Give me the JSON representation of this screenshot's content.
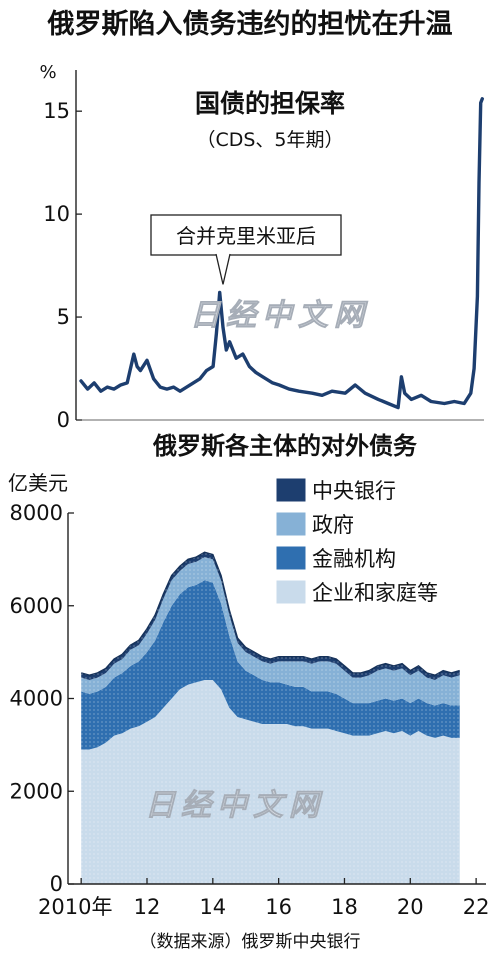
{
  "headline": "俄罗斯陷入债务违约的担忧在升温",
  "source_note": "（数据来源）俄罗斯中央银行",
  "watermark_text": "日经中文网",
  "colors": {
    "line": "#1d3e6f",
    "central_bank": "#1d3e6f",
    "government": "#86b1d6",
    "financial": "#2f6fb0",
    "corporate": "#c9dbeb"
  },
  "chart_data": [
    {
      "type": "line",
      "title": "国债的担保率",
      "subtitle": "（CDS、5年期）",
      "ylabel": "%",
      "ylim": [
        0,
        17
      ],
      "yticks": [
        0,
        5,
        10,
        15
      ],
      "annotation": {
        "text": "合并克里米亚后",
        "x": 2014.3,
        "y": 6.2
      },
      "series": [
        {
          "x": [
            2010.0,
            2010.2,
            2010.4,
            2010.6,
            2010.8,
            2011.0,
            2011.2,
            2011.4,
            2011.6,
            2011.7,
            2011.8,
            2012.0,
            2012.2,
            2012.4,
            2012.6,
            2012.8,
            2013.0,
            2013.2,
            2013.4,
            2013.6,
            2013.8,
            2014.0,
            2014.1,
            2014.2,
            2014.3,
            2014.4,
            2014.5,
            2014.7,
            2014.9,
            2015.1,
            2015.3,
            2015.5,
            2015.8,
            2016.0,
            2016.3,
            2016.6,
            2017.0,
            2017.3,
            2017.6,
            2018.0,
            2018.3,
            2018.6,
            2019.0,
            2019.3,
            2019.6,
            2019.7,
            2019.8,
            2020.0,
            2020.3,
            2020.6,
            2021.0,
            2021.3,
            2021.6,
            2021.8,
            2021.9,
            2022.0,
            2022.05,
            2022.1,
            2022.15
          ],
          "values": [
            1.9,
            1.5,
            1.8,
            1.4,
            1.6,
            1.5,
            1.7,
            1.8,
            3.2,
            2.6,
            2.4,
            2.9,
            2.0,
            1.6,
            1.5,
            1.6,
            1.4,
            1.6,
            1.8,
            2.0,
            2.4,
            2.6,
            4.2,
            6.2,
            4.5,
            3.4,
            3.8,
            3.0,
            3.2,
            2.6,
            2.3,
            2.1,
            1.8,
            1.7,
            1.5,
            1.4,
            1.3,
            1.2,
            1.4,
            1.3,
            1.7,
            1.3,
            1.0,
            0.8,
            0.6,
            2.1,
            1.3,
            1.0,
            1.2,
            0.9,
            0.8,
            0.9,
            0.8,
            1.3,
            2.5,
            6.0,
            11.5,
            15.4,
            15.6
          ]
        }
      ]
    },
    {
      "type": "area",
      "title": "俄罗斯各主体的对外债务",
      "ylabel": "亿美元",
      "ylim": [
        0,
        8000
      ],
      "yticks": [
        0,
        2000,
        4000,
        6000,
        8000
      ],
      "xticks": [
        {
          "x": 2010,
          "label": "2010年"
        },
        {
          "x": 2012,
          "label": "12"
        },
        {
          "x": 2014,
          "label": "14"
        },
        {
          "x": 2016,
          "label": "16"
        },
        {
          "x": 2018,
          "label": "18"
        },
        {
          "x": 2020,
          "label": "20"
        },
        {
          "x": 2022,
          "label": "22"
        }
      ],
      "legend_placement": "top-right",
      "x": [
        2010.0,
        2010.25,
        2010.5,
        2010.75,
        2011.0,
        2011.25,
        2011.5,
        2011.75,
        2012.0,
        2012.25,
        2012.5,
        2012.75,
        2013.0,
        2013.25,
        2013.5,
        2013.75,
        2014.0,
        2014.25,
        2014.5,
        2014.75,
        2015.0,
        2015.25,
        2015.5,
        2015.75,
        2016.0,
        2016.25,
        2016.5,
        2016.75,
        2017.0,
        2017.25,
        2017.5,
        2017.75,
        2018.0,
        2018.25,
        2018.5,
        2018.75,
        2019.0,
        2019.25,
        2019.5,
        2019.75,
        2020.0,
        2020.25,
        2020.5,
        2020.75,
        2021.0,
        2021.25,
        2021.5
      ],
      "series": [
        {
          "name": "企业和家庭等",
          "values": [
            2900,
            2900,
            2950,
            3050,
            3200,
            3250,
            3350,
            3400,
            3500,
            3600,
            3800,
            4000,
            4200,
            4300,
            4350,
            4400,
            4400,
            4200,
            3800,
            3600,
            3550,
            3500,
            3450,
            3450,
            3450,
            3450,
            3400,
            3400,
            3350,
            3350,
            3350,
            3300,
            3250,
            3200,
            3200,
            3200,
            3250,
            3300,
            3250,
            3300,
            3200,
            3300,
            3200,
            3150,
            3200,
            3150,
            3150
          ]
        },
        {
          "name": "金融机构",
          "values": [
            1250,
            1200,
            1200,
            1200,
            1250,
            1300,
            1350,
            1400,
            1500,
            1650,
            1850,
            2000,
            2050,
            2100,
            2100,
            2150,
            2100,
            1850,
            1550,
            1200,
            1050,
            1000,
            950,
            900,
            900,
            850,
            850,
            850,
            800,
            800,
            800,
            800,
            750,
            700,
            700,
            700,
            700,
            700,
            700,
            700,
            700,
            700,
            700,
            700,
            700,
            700,
            700
          ]
        },
        {
          "name": "政府",
          "values": [
            300,
            300,
            300,
            300,
            300,
            300,
            350,
            350,
            400,
            450,
            500,
            550,
            500,
            500,
            500,
            500,
            500,
            500,
            450,
            400,
            400,
            400,
            400,
            400,
            450,
            500,
            550,
            550,
            600,
            650,
            650,
            650,
            600,
            550,
            550,
            600,
            650,
            650,
            650,
            650,
            600,
            600,
            550,
            550,
            600,
            600,
            650
          ]
        },
        {
          "name": "中央银行",
          "values": [
            100,
            100,
            100,
            100,
            100,
            100,
            100,
            100,
            100,
            100,
            100,
            100,
            100,
            100,
            100,
            100,
            100,
            100,
            100,
            100,
            100,
            100,
            100,
            100,
            100,
            100,
            100,
            100,
            100,
            100,
            100,
            100,
            100,
            100,
            100,
            100,
            100,
            100,
            100,
            100,
            100,
            100,
            100,
            100,
            100,
            100,
            100
          ]
        }
      ],
      "legend": [
        "中央银行",
        "政府",
        "金融机构",
        "企业和家庭等"
      ]
    }
  ]
}
